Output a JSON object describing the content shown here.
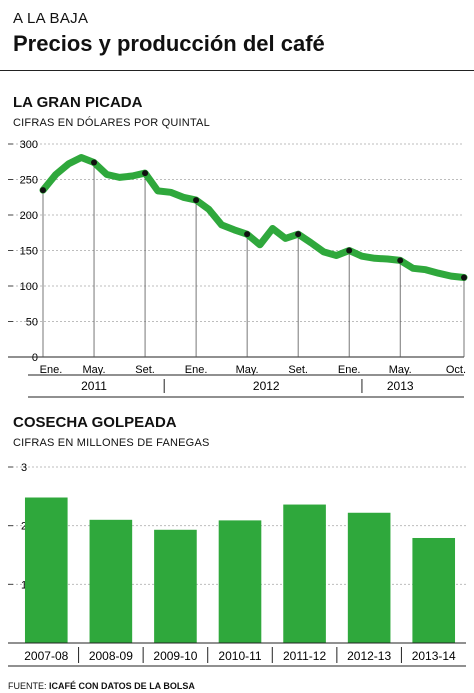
{
  "header": {
    "kicker": "A LA BAJA",
    "title": "Precios y producción del café"
  },
  "colors": {
    "series": "#2fa83c",
    "marker": "#111111",
    "gridline": "#bdbdbd"
  },
  "source": {
    "prefix": "FUENTE: ",
    "text": "ICAFÉ CON DATOS DE LA BOLSA"
  },
  "chart_data": [
    {
      "type": "line",
      "title": "LA GRAN PICADA",
      "subtitle": "CIFRAS EN DÓLARES POR QUINTAL",
      "ylim": [
        0,
        300
      ],
      "yticks": [
        0,
        50,
        100,
        150,
        200,
        250,
        300
      ],
      "grid": true,
      "x_tick_labels": [
        "Ene.",
        "May.",
        "Set.",
        "Ene.",
        "May.",
        "Set.",
        "Ene.",
        "May.",
        "Oct."
      ],
      "x_tick_months": [
        0,
        4,
        8,
        12,
        16,
        20,
        24,
        28,
        33
      ],
      "year_labels": [
        "2011",
        "2012",
        "2013"
      ],
      "year_label_months": [
        4,
        17.5,
        28
      ],
      "year_separator_months": [
        9.5,
        25
      ],
      "x_months": [
        0,
        1,
        2,
        3,
        4,
        5,
        6,
        7,
        8,
        9,
        10,
        11,
        12,
        13,
        14,
        15,
        16,
        17,
        18,
        19,
        20,
        21,
        22,
        23,
        24,
        25,
        26,
        27,
        28,
        29,
        30,
        31,
        32,
        33
      ],
      "values": [
        235,
        257,
        272,
        281,
        274,
        257,
        253,
        255,
        259,
        234,
        232,
        225,
        221,
        208,
        186,
        179,
        173,
        158,
        181,
        167,
        173,
        161,
        148,
        143,
        150,
        142,
        139,
        138,
        136,
        125,
        123,
        118,
        114,
        112
      ],
      "marker_months": [
        0,
        4,
        8,
        12,
        16,
        20,
        24,
        28,
        33
      ]
    },
    {
      "type": "bar",
      "title": "COSECHA GOLPEADA",
      "subtitle": "CIFRAS EN MILLONES DE FANEGAS",
      "ylim": [
        0,
        3
      ],
      "yticks": [
        0,
        1,
        2,
        3
      ],
      "grid": true,
      "categories": [
        "2007-08",
        "2008-09",
        "2009-10",
        "2010-11",
        "2011-12",
        "2012-13",
        "2013-14"
      ],
      "values": [
        2.48,
        2.1,
        1.93,
        2.09,
        2.36,
        2.22,
        1.79
      ]
    }
  ]
}
